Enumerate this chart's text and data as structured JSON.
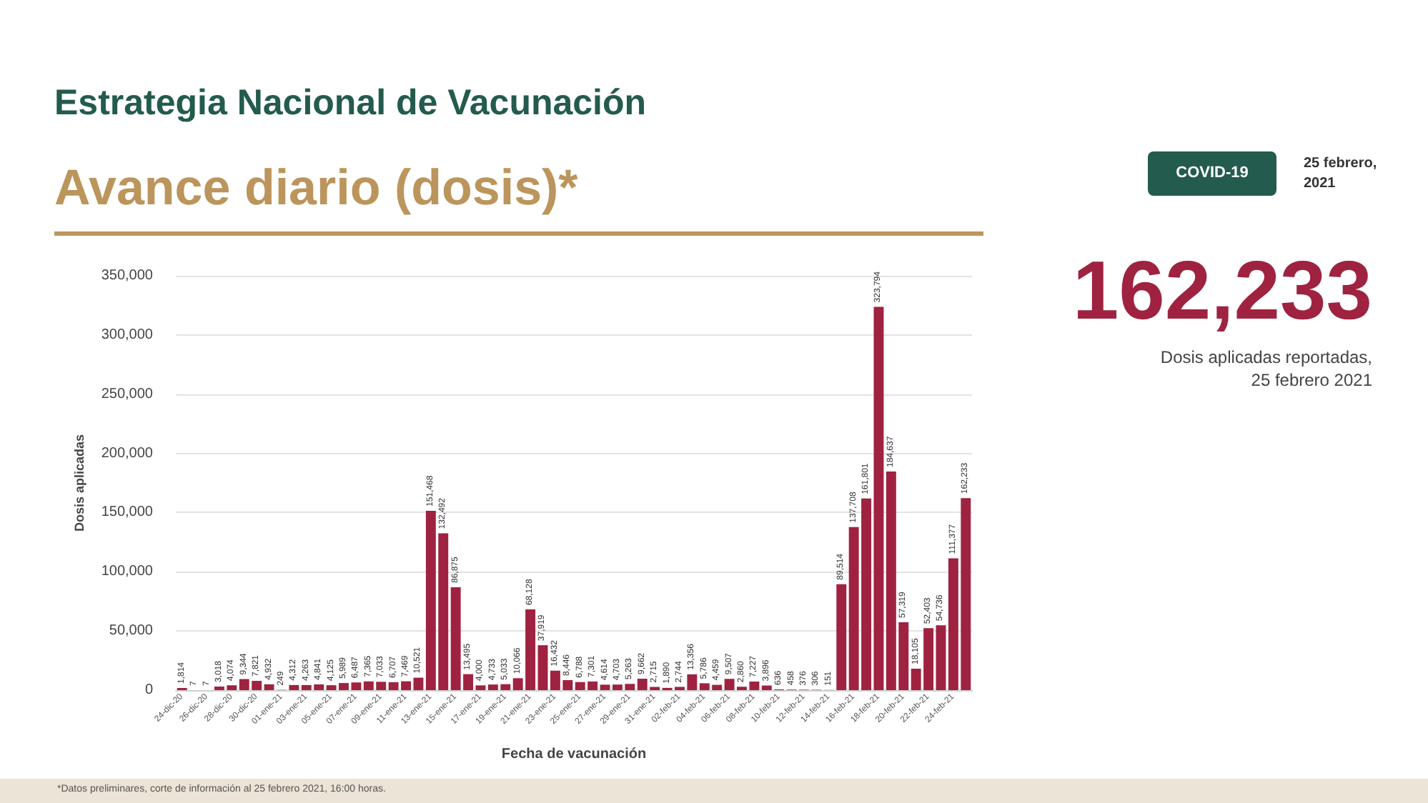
{
  "chart_data": {
    "type": "bar",
    "title": "Estrategia Nacional de Vacunación",
    "subtitle": "Avance diario (dosis)*",
    "xlabel": "Fecha de vacunación",
    "ylabel": "Dosis aplicadas",
    "categories": [
      "24-dic-20",
      null,
      "26-dic-20",
      null,
      "28-dic-20",
      null,
      "30-dic-20",
      null,
      "01-ene-21",
      null,
      "03-ene-21",
      null,
      "05-ene-21",
      null,
      "07-ene-21",
      null,
      "09-ene-21",
      null,
      "11-ene-21",
      null,
      "13-ene-21",
      null,
      "15-ene-21",
      null,
      "17-ene-21",
      null,
      "19-ene-21",
      null,
      "21-ene-21",
      null,
      "23-ene-21",
      null,
      "25-ene-21",
      null,
      "27-ene-21",
      null,
      "29-ene-21",
      null,
      "31-ene-21",
      null,
      "02-feb-21",
      null,
      "04-feb-21",
      null,
      "06-feb-21",
      null,
      "08-feb-21",
      null,
      "10-feb-21",
      null,
      "12-feb-21",
      null,
      "14-feb-21",
      null,
      "16-feb-21",
      null,
      "18-feb-21",
      null,
      "20-feb-21",
      null,
      "22-feb-21",
      null,
      "24-feb-21",
      null
    ],
    "values": [
      1814,
      7,
      7,
      3018,
      4074,
      9344,
      7821,
      4932,
      249,
      4312,
      4263,
      4841,
      4125,
      5989,
      6487,
      7365,
      7033,
      6707,
      7469,
      10521,
      151468,
      132492,
      86875,
      13495,
      4000,
      4733,
      5033,
      10066,
      68128,
      37919,
      16432,
      8446,
      6788,
      7301,
      4614,
      4703,
      5263,
      9662,
      2715,
      1890,
      2744,
      13356,
      5786,
      4459,
      9507,
      2860,
      7227,
      3896,
      636,
      458,
      376,
      306,
      151,
      89514,
      137708,
      161801,
      323794,
      184637,
      57319,
      18105,
      52403,
      54736,
      111377,
      162233
    ],
    "value_labels": [
      "1,814",
      "7",
      "7",
      "3,018",
      "4,074",
      "9,344",
      "7,821",
      "4,932",
      "249",
      "4,312",
      "4,263",
      "4,841",
      "4,125",
      "5,989",
      "6,487",
      "7,365",
      "7,033",
      "6,707",
      "7,469",
      "10,521",
      "151,468",
      "132,492",
      "86,875",
      "13,495",
      "4,000",
      "4,733",
      "5,033",
      "10,066",
      "68,128",
      "37,919",
      "16,432",
      "8,446",
      "6,788",
      "7,301",
      "4,614",
      "4,703",
      "5,263",
      "9,662",
      "2,715",
      "1,890",
      "2,744",
      "13,356",
      "5,786",
      "4,459",
      "9,507",
      "2,860",
      "7,227",
      "3,896",
      "636",
      "458",
      "376",
      "306",
      "151",
      "89,514",
      "137,708",
      "161,801",
      "323,794",
      "184,637",
      "57,319",
      "18,105",
      "52,403",
      "54,736",
      "111,377",
      "162,233"
    ],
    "color": "#9f2241",
    "ylim": [
      0,
      350000
    ],
    "yticks": [
      0,
      {
        "value": 50000,
        "label": "50,000"
      },
      {
        "value": 100000,
        "label": "100,000"
      },
      {
        "value": 150000,
        "label": "150,000"
      },
      {
        "value": 200000,
        "label": "200,000"
      },
      {
        "value": 250000,
        "label": "250,000"
      },
      {
        "value": 300000,
        "label": "300,000"
      },
      {
        "value": 350000,
        "label": "350,000"
      }
    ],
    "grid": "y",
    "annotations": [
      "COVID-19",
      "25 febrero, 2021",
      "162,233",
      "Dosis aplicadas reportadas, 25 febrero 2021",
      "*Datos preliminares, corte de información al 25 febrero 2021, 16:00 horas."
    ]
  }
}
